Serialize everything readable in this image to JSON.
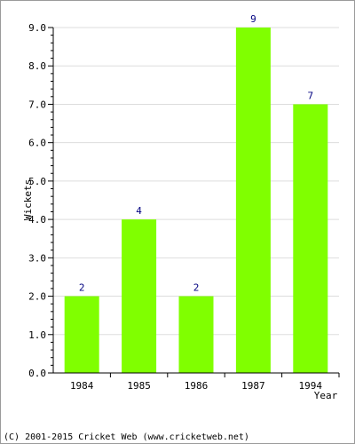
{
  "chart_data": {
    "type": "bar",
    "categories": [
      "1984",
      "1985",
      "1986",
      "1987",
      "1994"
    ],
    "values": [
      2,
      4,
      2,
      9,
      7
    ],
    "data_labels": [
      "2",
      "4",
      "2",
      "9",
      "7"
    ],
    "title": "",
    "xlabel": "Year",
    "ylabel": "Wickets",
    "ylim": [
      0,
      9
    ],
    "yticks": [
      "0.0",
      "1.0",
      "2.0",
      "3.0",
      "4.0",
      "5.0",
      "6.0",
      "7.0",
      "8.0",
      "9.0"
    ],
    "grid": true,
    "legend": "none",
    "colors": {
      "bar": "#80ff00",
      "data_label": "#000080",
      "grid": "#dddddd",
      "axis": "#000000",
      "text": "#000000"
    }
  },
  "footer": {
    "copyright": "(C) 2001-2015 Cricket Web (www.cricketweb.net)"
  }
}
